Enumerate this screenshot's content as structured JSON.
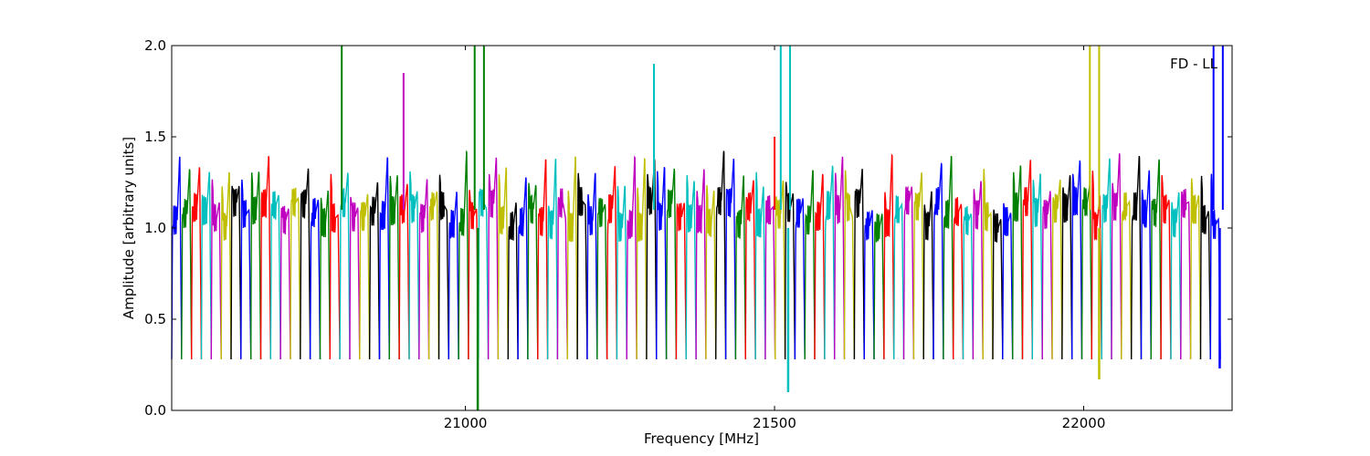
{
  "chart_data": {
    "type": "line",
    "title": "",
    "annotation": "FD - LL",
    "xlabel": "Frequency [MHz]",
    "ylabel": "Amplitude [arbitrary units]",
    "xlim": [
      20525,
      22240
    ],
    "ylim": [
      0.0,
      2.0
    ],
    "x_ticks": [
      21000,
      21500,
      22000
    ],
    "y_ticks": [
      0.0,
      0.5,
      1.0,
      1.5,
      2.0
    ],
    "x_tick_labels": [
      "21000",
      "21500",
      "22000"
    ],
    "y_tick_labels": [
      "0.0",
      "0.5",
      "1.0",
      "1.5",
      "2.0"
    ],
    "grid": false,
    "channel_width_mhz": 16,
    "series_colors": [
      "#0000ff",
      "#008000",
      "#ff0000",
      "#00bfbf",
      "#bf00bf",
      "#bfbf00",
      "#000000"
    ],
    "channel_colors": [
      "#0000ff",
      "#008000",
      "#ff0000",
      "#00bfbf",
      "#bf00bf",
      "#bfbf00",
      "#000000",
      "#0000ff",
      "#008000",
      "#ff0000",
      "#00bfbf",
      "#bf00bf",
      "#bfbf00",
      "#000000",
      "#0000ff",
      "#008000",
      "#ff0000",
      "#00bfbf",
      "#bf00bf",
      "#bfbf00",
      "#000000",
      "#0000ff",
      "#008000",
      "#ff0000",
      "#00bfbf",
      "#bf00bf",
      "#bfbf00",
      "#000000",
      "#0000ff",
      "#008000",
      "#ff0000",
      "#00bfbf",
      "#bf00bf",
      "#bfbf00",
      "#000000",
      "#0000ff",
      "#008000",
      "#ff0000",
      "#00bfbf",
      "#bf00bf",
      "#bfbf00",
      "#000000",
      "#0000ff",
      "#008000",
      "#ff0000",
      "#00bfbf",
      "#bf00bf",
      "#bfbf00",
      "#000000",
      "#0000ff",
      "#008000",
      "#ff0000",
      "#00bfbf",
      "#bf00bf",
      "#bfbf00",
      "#000000",
      "#0000ff",
      "#008000",
      "#ff0000",
      "#00bfbf",
      "#bf00bf",
      "#bfbf00",
      "#000000",
      "#0000ff",
      "#008000",
      "#ff0000",
      "#00bfbf",
      "#bf00bf",
      "#bfbf00",
      "#000000",
      "#0000ff",
      "#008000",
      "#ff0000",
      "#00bfbf",
      "#bf00bf",
      "#bfbf00",
      "#000000",
      "#0000ff",
      "#008000",
      "#ff0000",
      "#00bfbf",
      "#bf00bf",
      "#bfbf00",
      "#000000",
      "#0000ff",
      "#008000",
      "#ff0000",
      "#00bfbf",
      "#bf00bf",
      "#bfbf00",
      "#000000",
      "#0000ff",
      "#008000",
      "#ff0000",
      "#00bfbf",
      "#bf00bf",
      "#bfbf00",
      "#000000",
      "#0000ff",
      "#008000",
      "#ff0000",
      "#00bfbf",
      "#bf00bf",
      "#bfbf00",
      "#000000",
      "#0000ff"
    ],
    "spikes": [
      {
        "x": 20800,
        "y": 2.0,
        "color": "#008000"
      },
      {
        "x": 20900,
        "y": 1.85,
        "color": "#bf00bf"
      },
      {
        "x": 21015,
        "y": 2.0,
        "color": "#008000"
      },
      {
        "x": 21030,
        "y": 2.0,
        "color": "#008000"
      },
      {
        "x": 21305,
        "y": 1.9,
        "color": "#00bfbf"
      },
      {
        "x": 21500,
        "y": 1.5,
        "color": "#ff0000"
      },
      {
        "x": 21510,
        "y": 2.0,
        "color": "#00bfbf"
      },
      {
        "x": 21525,
        "y": 2.0,
        "color": "#00bfbf"
      },
      {
        "x": 22010,
        "y": 2.0,
        "color": "#bfbf00"
      },
      {
        "x": 22025,
        "y": 2.0,
        "color": "#bfbf00"
      },
      {
        "x": 22210,
        "y": 2.0,
        "color": "#0000ff"
      },
      {
        "x": 22225,
        "y": 2.0,
        "color": "#0000ff"
      }
    ],
    "dips": [
      {
        "x": 21020,
        "y": 0.0,
        "color": "#008000"
      },
      {
        "x": 21522,
        "y": 0.1,
        "color": "#00bfbf"
      },
      {
        "x": 22025,
        "y": 0.17,
        "color": "#bfbf00"
      },
      {
        "x": 22220,
        "y": 0.23,
        "color": "#0000ff"
      }
    ]
  }
}
